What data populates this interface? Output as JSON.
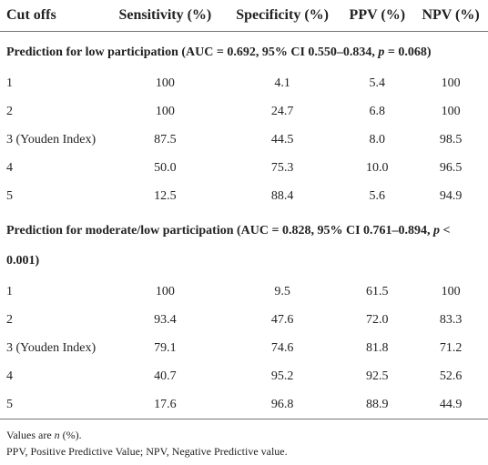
{
  "table": {
    "header": [
      "Cut offs",
      "Sensitivity (%)",
      "Specificity (%)",
      "PPV (%)",
      "NPV (%)"
    ],
    "sections": [
      {
        "heading": {
          "prefix": "Prediction for low participation (AUC = 0.692, 95% CI 0.550–0.834,",
          "italic": "p",
          "suffix": "= 0.068)"
        },
        "rows": [
          [
            "1",
            "100",
            "4.1",
            "5.4",
            "100"
          ],
          [
            "2",
            "100",
            "24.7",
            "6.8",
            "100"
          ],
          [
            "3 (Youden Index)",
            "87.5",
            "44.5",
            "8.0",
            "98.5"
          ],
          [
            "4",
            "50.0",
            "75.3",
            "10.0",
            "96.5"
          ],
          [
            "5",
            "12.5",
            "88.4",
            "5.6",
            "94.9"
          ]
        ]
      },
      {
        "heading": {
          "prefix": "Prediction for moderate/low participation (AUC = 0.828, 95% CI 0.761–0.894,",
          "italic": "p",
          "suffix": "< 0.001)"
        },
        "rows": [
          [
            "1",
            "100",
            "9.5",
            "61.5",
            "100"
          ],
          [
            "2",
            "93.4",
            "47.6",
            "72.0",
            "83.3"
          ],
          [
            "3 (Youden Index)",
            "79.1",
            "74.6",
            "81.8",
            "71.2"
          ],
          [
            "4",
            "40.7",
            "95.2",
            "92.5",
            "52.6"
          ],
          [
            "5",
            "17.6",
            "96.8",
            "88.9",
            "44.9"
          ]
        ]
      }
    ]
  },
  "footnotes": [
    {
      "prefix": "Values are",
      "italic": "n",
      "suffix": "(%)."
    },
    "PPV, Positive Predictive Value; NPV, Negative Predictive value."
  ]
}
